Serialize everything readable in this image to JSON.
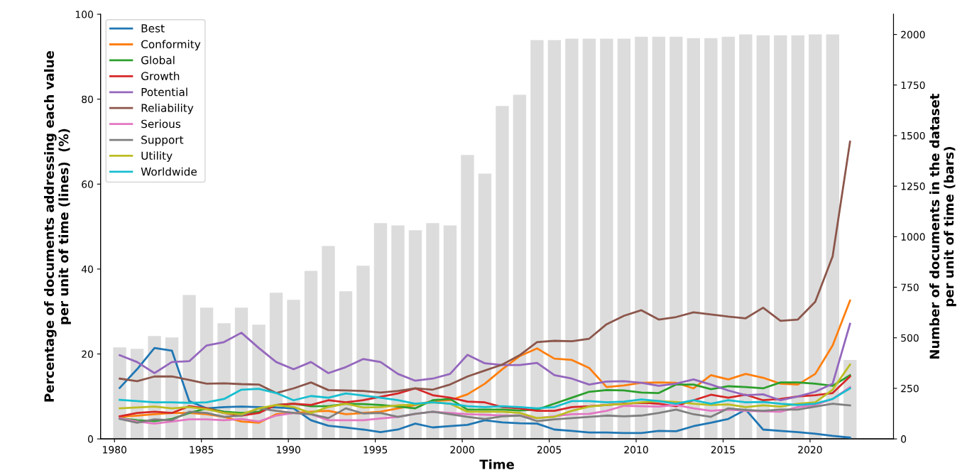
{
  "chart_data": {
    "type": "line",
    "xlabel": "Time",
    "ylabel": "Percentage of documents addressing each value\nper unit of time (lines)  (%)",
    "y2label": "Number of documents in the dataset\nper unit of time (bars)",
    "x": [
      1980.3,
      1981.3,
      1982.3,
      1983.3,
      1984.3,
      1985.3,
      1986.3,
      1987.3,
      1988.3,
      1989.3,
      1990.3,
      1991.3,
      1992.3,
      1993.3,
      1994.3,
      1995.3,
      1996.3,
      1997.3,
      1998.3,
      1999.3,
      2000.3,
      2001.3,
      2002.3,
      2003.3,
      2004.3,
      2005.3,
      2006.3,
      2007.3,
      2008.3,
      2009.3,
      2010.3,
      2011.3,
      2012.3,
      2013.3,
      2014.3,
      2015.3,
      2016.3,
      2017.3,
      2018.3,
      2019.3,
      2020.3,
      2021.3,
      2022.3
    ],
    "xlim": [
      1979.2,
      2024.8
    ],
    "xticks": [
      1980,
      1985,
      1990,
      1995,
      2000,
      2005,
      2010,
      2015,
      2020
    ],
    "ylim": [
      0,
      100
    ],
    "yticks": [
      0,
      20,
      40,
      60,
      80,
      100
    ],
    "y2lim": [
      0,
      2100
    ],
    "y2ticks": [
      0,
      250,
      500,
      750,
      1000,
      1250,
      1500,
      1750,
      2000
    ],
    "legend": "top left",
    "grid": false,
    "marker": "none",
    "line_style": "solid",
    "series": [
      {
        "name": null,
        "type": "bar",
        "axis": "y2",
        "color": "#dcdcdc",
        "values": [
          453,
          446,
          509,
          502,
          712,
          649,
          572,
          649,
          565,
          723,
          688,
          831,
          954,
          730,
          856,
          1067,
          1056,
          1032,
          1067,
          1056,
          1404,
          1312,
          1646,
          1702,
          1972,
          1972,
          1979,
          1979,
          1979,
          1979,
          1989,
          1989,
          1989,
          1982,
          1982,
          1989,
          2000,
          1996,
          1996,
          1996,
          2000,
          2000,
          390
        ]
      },
      {
        "name": "Best",
        "color": "#1f77b4",
        "values": [
          12.0,
          16.4,
          21.4,
          20.8,
          8.9,
          7.2,
          7.5,
          7.6,
          7.5,
          7.4,
          7.2,
          4.4,
          3.1,
          2.7,
          2.2,
          1.6,
          2.2,
          3.6,
          2.7,
          3.0,
          3.3,
          4.4,
          3.9,
          3.7,
          3.6,
          2.2,
          1.9,
          1.5,
          1.5,
          1.4,
          1.4,
          1.9,
          1.8,
          3.0,
          3.8,
          4.7,
          6.9,
          2.2,
          1.9,
          1.6,
          1.2,
          0.7,
          0.3
        ]
      },
      {
        "name": "Conformity",
        "color": "#ff7f0e",
        "values": [
          5.2,
          5.5,
          5.8,
          6.1,
          6.1,
          5.8,
          5.2,
          4.1,
          3.8,
          5.8,
          6.1,
          6.4,
          6.6,
          5.8,
          6.1,
          6.4,
          7.2,
          8.0,
          8.9,
          9.1,
          10.5,
          13.0,
          16.4,
          19.5,
          21.3,
          18.9,
          18.6,
          16.7,
          12.2,
          12.6,
          13.2,
          13.3,
          13.2,
          11.9,
          15.0,
          14.0,
          15.3,
          14.4,
          13.0,
          12.8,
          15.3,
          22.0,
          32.6
        ]
      },
      {
        "name": "Global",
        "color": "#2ca02c",
        "values": [
          4.9,
          4.4,
          4.2,
          4.7,
          6.1,
          7.2,
          6.4,
          6.1,
          6.4,
          8.0,
          8.3,
          7.7,
          7.7,
          8.3,
          8.2,
          8.0,
          7.6,
          7.2,
          9.1,
          9.4,
          6.9,
          6.9,
          6.9,
          6.7,
          6.9,
          8.3,
          9.7,
          11.1,
          11.5,
          11.4,
          10.9,
          10.8,
          12.8,
          12.8,
          11.7,
          12.4,
          12.2,
          11.9,
          13.3,
          13.3,
          13.0,
          12.5,
          15.0
        ]
      },
      {
        "name": "Growth",
        "color": "#d62728",
        "values": [
          5.3,
          6.1,
          6.4,
          6.1,
          7.7,
          7.2,
          6.1,
          5.5,
          6.1,
          8.0,
          8.3,
          8.0,
          9.1,
          8.6,
          9.1,
          9.9,
          10.7,
          11.9,
          10.3,
          9.7,
          8.8,
          8.6,
          7.5,
          7.2,
          6.6,
          6.6,
          7.5,
          7.7,
          8.0,
          8.3,
          8.5,
          8.3,
          7.7,
          9.1,
          10.4,
          9.7,
          10.4,
          9.1,
          9.4,
          10.0,
          10.3,
          10.8,
          14.7
        ]
      },
      {
        "name": "Potential",
        "color": "#9467bd",
        "values": [
          19.7,
          18.1,
          15.5,
          18.1,
          18.3,
          22.0,
          22.8,
          25.0,
          21.4,
          18.1,
          16.4,
          18.1,
          15.5,
          16.9,
          18.8,
          18.1,
          15.3,
          13.7,
          14.2,
          15.3,
          19.8,
          17.8,
          17.4,
          17.4,
          17.9,
          15.0,
          14.2,
          12.8,
          13.5,
          13.6,
          13.2,
          12.5,
          13.0,
          14.0,
          12.8,
          11.4,
          10.3,
          10.5,
          9.1,
          10.0,
          11.1,
          13.0,
          27.1
        ]
      },
      {
        "name": "Reliability",
        "color": "#8c564b",
        "values": [
          14.2,
          13.6,
          14.7,
          14.7,
          13.9,
          13.0,
          13.1,
          12.9,
          12.8,
          10.8,
          11.9,
          13.3,
          11.5,
          11.4,
          11.3,
          10.9,
          11.3,
          11.9,
          11.6,
          12.8,
          14.7,
          16.1,
          17.5,
          19.7,
          22.8,
          23.1,
          23.0,
          23.6,
          27.0,
          29.0,
          30.3,
          28.1,
          28.7,
          29.8,
          29.3,
          28.8,
          28.4,
          30.9,
          27.8,
          28.1,
          32.3,
          43.0,
          70.0
        ]
      },
      {
        "name": "Serious",
        "color": "#e377c2",
        "values": [
          4.9,
          4.1,
          3.6,
          4.1,
          4.6,
          4.6,
          4.4,
          4.7,
          4.1,
          5.5,
          6.1,
          5.8,
          4.4,
          4.4,
          4.4,
          4.8,
          5.2,
          5.9,
          6.4,
          6.1,
          5.8,
          5.7,
          5.5,
          5.5,
          4.9,
          5.3,
          5.8,
          5.9,
          6.6,
          7.8,
          7.7,
          7.6,
          8.0,
          7.2,
          6.6,
          6.9,
          6.6,
          6.5,
          6.4,
          7.5,
          8.0,
          9.4,
          12.2
        ]
      },
      {
        "name": "Support",
        "color": "#7f7f7f",
        "values": [
          4.7,
          3.8,
          4.6,
          4.4,
          6.4,
          6.1,
          5.2,
          5.5,
          7.2,
          6.6,
          6.1,
          5.8,
          4.9,
          7.2,
          6.0,
          6.1,
          5.2,
          5.9,
          6.4,
          5.8,
          5.2,
          4.7,
          5.3,
          5.5,
          4.2,
          4.6,
          4.9,
          5.2,
          5.5,
          5.3,
          5.5,
          6.1,
          6.9,
          5.8,
          5.2,
          7.2,
          6.8,
          6.6,
          6.9,
          6.9,
          7.6,
          8.3,
          7.9
        ]
      },
      {
        "name": "Utility",
        "color": "#bcbd22",
        "values": [
          7.2,
          7.4,
          7.6,
          7.2,
          7.5,
          7.0,
          6.1,
          5.8,
          7.2,
          8.0,
          7.5,
          6.1,
          7.5,
          8.3,
          7.4,
          7.5,
          7.9,
          8.1,
          8.6,
          8.3,
          6.4,
          6.4,
          6.4,
          6.1,
          4.9,
          5.2,
          6.6,
          7.6,
          8.0,
          8.2,
          8.6,
          8.9,
          8.7,
          8.3,
          8.0,
          8.1,
          7.5,
          7.9,
          7.6,
          8.3,
          8.6,
          11.6,
          17.5
        ]
      },
      {
        "name": "Worldwide",
        "color": "#17becf",
        "values": [
          9.2,
          8.9,
          8.6,
          8.6,
          8.5,
          8.6,
          9.4,
          11.6,
          11.8,
          10.8,
          9.1,
          10.1,
          9.7,
          10.7,
          10.2,
          9.7,
          9.1,
          8.3,
          8.6,
          8.3,
          7.7,
          7.5,
          7.7,
          7.5,
          7.2,
          7.5,
          8.9,
          8.9,
          8.6,
          8.8,
          9.3,
          8.9,
          8.3,
          9.1,
          8.3,
          9.1,
          8.6,
          8.7,
          8.3,
          8.0,
          8.3,
          9.4,
          11.9
        ]
      }
    ]
  }
}
